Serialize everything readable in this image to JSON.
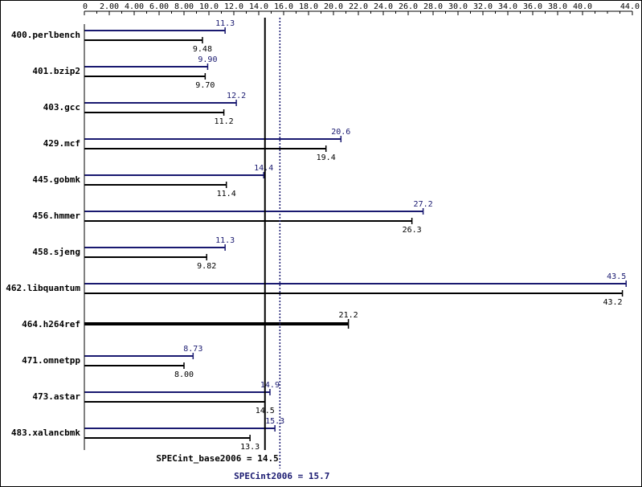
{
  "chart_data": {
    "type": "bar",
    "orientation": "horizontal",
    "xlim": [
      0,
      44
    ],
    "x_ticks": [
      "0",
      "2.00",
      "4.00",
      "6.00",
      "8.00",
      "10.0",
      "12.0",
      "14.0",
      "16.0",
      "18.0",
      "20.0",
      "22.0",
      "24.0",
      "26.0",
      "28.0",
      "30.0",
      "32.0",
      "34.0",
      "36.0",
      "38.0",
      "40.0",
      "44.0"
    ],
    "categories": [
      "400.perlbench",
      "401.bzip2",
      "403.gcc",
      "429.mcf",
      "445.gobmk",
      "456.hmmer",
      "458.sjeng",
      "462.libquantum",
      "464.h264ref",
      "471.omnetpp",
      "473.astar",
      "483.xalancbmk"
    ],
    "series": [
      {
        "name": "",
        "color": "#191970",
        "values": [
          11.3,
          9.9,
          12.2,
          20.6,
          14.4,
          27.2,
          11.3,
          43.5,
          21.2,
          8.73,
          14.9,
          15.3
        ],
        "labels": [
          "11.3",
          "9.90",
          "12.2",
          "20.6",
          "14.4",
          "27.2",
          "11.3",
          "43.5",
          "",
          "8.73",
          "14.9",
          "15.3"
        ]
      },
      {
        "name": "",
        "color": "#000000",
        "values": [
          9.48,
          9.7,
          11.2,
          19.4,
          11.4,
          26.3,
          9.82,
          43.2,
          21.2,
          8.0,
          14.5,
          13.3
        ],
        "labels": [
          "9.48",
          "9.70",
          "11.2",
          "19.4",
          "11.4",
          "26.3",
          "9.82",
          "43.2",
          "21.2",
          "8.00",
          "14.5",
          "13.3"
        ]
      }
    ],
    "reference_lines": [
      {
        "label": "SPECint_base2006 = 14.5",
        "value": 14.5,
        "color": "#000000",
        "style": "solid"
      },
      {
        "label": "SPECint2006 = 15.7",
        "value": 15.7,
        "color": "#191970",
        "style": "dotted"
      }
    ],
    "legend": "none",
    "grid": false
  }
}
